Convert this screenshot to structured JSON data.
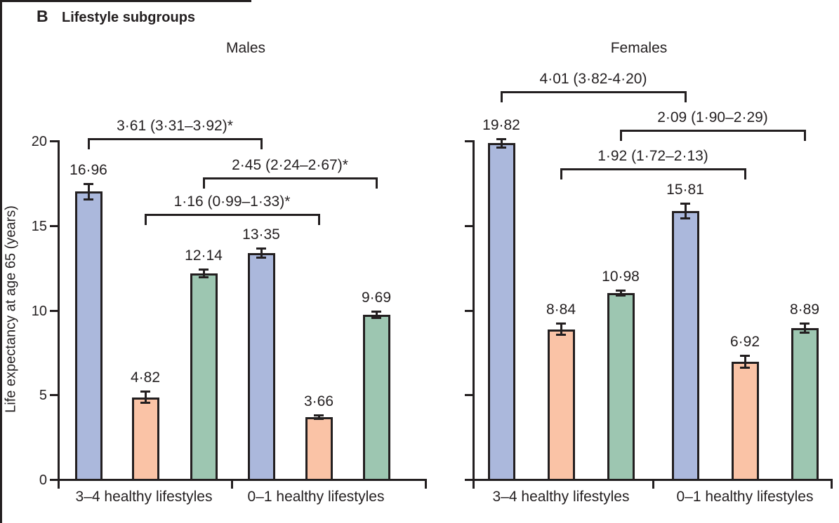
{
  "figure": {
    "panel_label": "B",
    "title": "Lifestyle subgroups"
  },
  "chart_data": {
    "type": "bar",
    "title": "B Lifestyle subgroups",
    "ylabel": "Life expectancy at age 65 (years)",
    "ylim": [
      0,
      20
    ],
    "yticks": [
      "0",
      "5",
      "10",
      "15",
      "20"
    ],
    "grid": false,
    "categories": [
      "3–4 healthy lifestyles",
      "0–1 healthy lifestyles"
    ],
    "series_colors": {
      "blue": "#abb8dc",
      "salmon": "#fac3a6",
      "green": "#9dc6b1"
    },
    "panels": [
      {
        "title": "Males",
        "groups": [
          {
            "category": "3–4 healthy lifestyles",
            "bars": [
              {
                "series": "blue",
                "value": 16.96,
                "label": "16·96",
                "err": 0.52,
                "color": "#abb8dc"
              },
              {
                "series": "salmon",
                "value": 4.82,
                "label": "4·82",
                "err": 0.4,
                "color": "#fac3a6"
              },
              {
                "series": "green",
                "value": 12.14,
                "label": "12·14",
                "err": 0.3,
                "color": "#9dc6b1"
              }
            ]
          },
          {
            "category": "0–1 healthy lifestyles",
            "bars": [
              {
                "series": "blue",
                "value": 13.35,
                "label": "13·35",
                "err": 0.33,
                "color": "#abb8dc"
              },
              {
                "series": "salmon",
                "value": 3.66,
                "label": "3·66",
                "err": 0.17,
                "color": "#fac3a6"
              },
              {
                "series": "green",
                "value": 9.69,
                "label": "9·69",
                "err": 0.25,
                "color": "#9dc6b1"
              }
            ]
          }
        ],
        "comparisons": [
          {
            "label": "3·61 (3·31–3·92)*",
            "from_bar": 0,
            "to_bar": 3
          },
          {
            "label": "2·45 (2·24–2·67)*",
            "from_bar": 2,
            "to_bar": 5
          },
          {
            "label": "1·16 (0·99–1·33)*",
            "from_bar": 1,
            "to_bar": 4
          }
        ]
      },
      {
        "title": "Females",
        "groups": [
          {
            "category": "3–4 healthy lifestyles",
            "bars": [
              {
                "series": "blue",
                "value": 19.82,
                "label": "19·82",
                "err": 0.3,
                "color": "#abb8dc"
              },
              {
                "series": "salmon",
                "value": 8.84,
                "label": "8·84",
                "err": 0.38,
                "color": "#fac3a6"
              },
              {
                "series": "green",
                "value": 10.98,
                "label": "10·98",
                "err": 0.22,
                "color": "#9dc6b1"
              }
            ]
          },
          {
            "category": "0–1 healthy lifestyles",
            "bars": [
              {
                "series": "blue",
                "value": 15.81,
                "label": "15·81",
                "err": 0.5,
                "color": "#abb8dc"
              },
              {
                "series": "salmon",
                "value": 6.92,
                "label": "6·92",
                "err": 0.42,
                "color": "#fac3a6"
              },
              {
                "series": "green",
                "value": 8.89,
                "label": "8·89",
                "err": 0.33,
                "color": "#9dc6b1"
              }
            ]
          }
        ],
        "comparisons": [
          {
            "label": "4·01 (3·82-4·20)",
            "from_bar": 0,
            "to_bar": 3
          },
          {
            "label": "2·09 (1·90–2·29)",
            "from_bar": 2,
            "to_bar": 5
          },
          {
            "label": "1·92 (1·72–2·13)",
            "from_bar": 1,
            "to_bar": 4
          }
        ]
      }
    ]
  }
}
